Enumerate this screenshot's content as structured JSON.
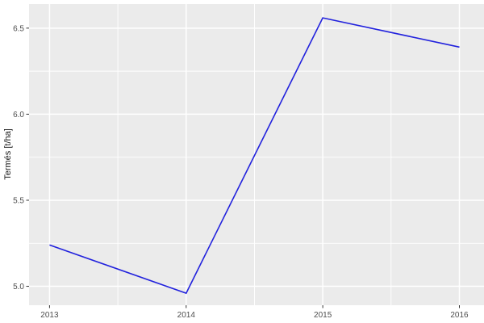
{
  "figure": {
    "background": "#FFFFFF",
    "panel_background": "#EBEBEB",
    "grid_color": "#FFFFFF",
    "axis_tick_color": "#333333",
    "tick_label_color": "#4D4D4D",
    "axis_title_color": "#1A1A1A"
  },
  "chart_data": {
    "type": "line",
    "title": "",
    "xlabel": "",
    "ylabel": "Termés [t/ha]",
    "x": [
      2013,
      2014,
      2015,
      2016
    ],
    "values": [
      5.24,
      4.96,
      6.56,
      6.39
    ],
    "line_color": "#2222DD",
    "xlim": [
      2012.85,
      2016.18
    ],
    "ylim": [
      4.89,
      6.64
    ],
    "x_ticks": [
      2013,
      2014,
      2015,
      2016
    ],
    "x_tick_labels": [
      "2013",
      "2014",
      "2015",
      "2016"
    ],
    "y_ticks": [
      5.0,
      5.5,
      6.0,
      6.5
    ],
    "y_tick_labels": [
      "5.0",
      "5.5",
      "6.0",
      "6.5"
    ],
    "x_minor_ticks": [
      2013.5,
      2014.5,
      2015.5
    ],
    "y_minor_ticks": [
      5.25,
      5.75,
      6.25
    ],
    "grid": true,
    "legend": "none"
  }
}
